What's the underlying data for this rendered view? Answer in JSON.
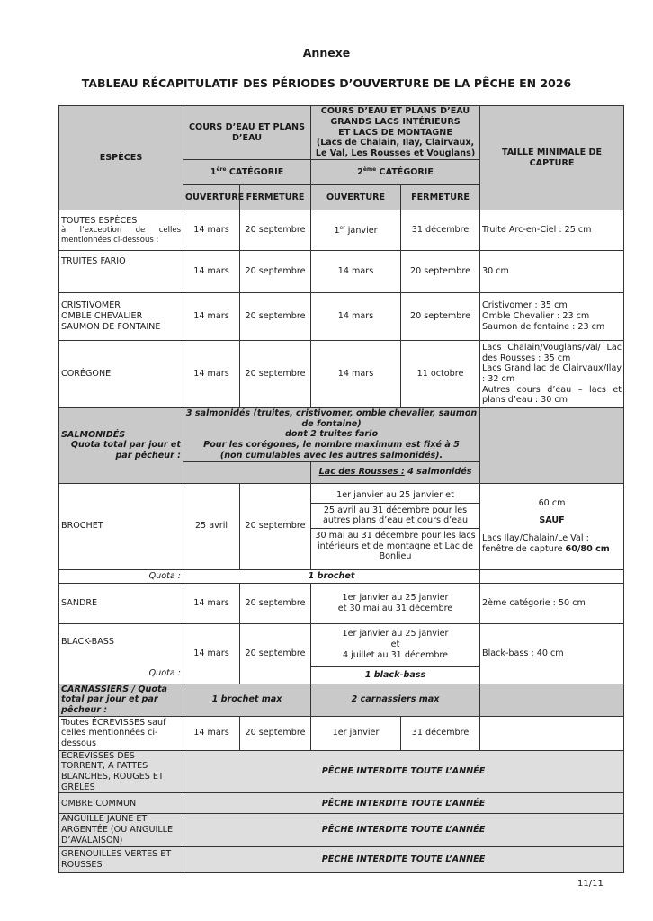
{
  "heading": "Annexe",
  "title": "TABLEAU RÉCAPITULATIF DES PÉRIODES D’OUVERTURE DE LA PÊCHE EN 2026",
  "header": {
    "species": "ESPÈCES",
    "group1": "COURS D’EAU ET PLANS D’EAU",
    "group2_line1": "COURS D’EAU ET PLANS D’EAU",
    "group2_line2": "GRANDS LACS INTÉRIEURS",
    "group2_line3": "ET LACS DE MONTAGNE",
    "group2_line4": "(Lacs de Chalain, Ilay, Clairvaux, Le Val, Les Rousses et Vouglans)",
    "min_size": "TAILLE MINIMALE DE CAPTURE",
    "cat1_num": "1",
    "cat1_sup": "ère",
    "cat1_label": " CATÉGORIE",
    "cat2_num": "2",
    "cat2_sup": "ème",
    "cat2_label": " CATÉGORIE",
    "opening": "OUVERTURE",
    "closing": "FERMETURE"
  },
  "rows": {
    "toutes": {
      "species": "TOUTES ESPÈCES",
      "note": "à l’exception de celles mentionnées ci-dessous :",
      "o1": "14 mars",
      "f1": "20 septembre",
      "o2_num": "1",
      "o2_sup": "er",
      "o2_text": " janvier",
      "f2": "31 décembre",
      "size": "Truite Arc-en-Ciel : 25 cm"
    },
    "fario": {
      "species": "TRUITES FARIO",
      "o1": "14 mars",
      "f1": "20 septembre",
      "o2": "14 mars",
      "f2": "20 septembre",
      "size": "30 cm"
    },
    "cristivomer": {
      "species": [
        "CRISTIVOMER",
        "OMBLE CHEVALIER",
        "SAUMON DE FONTAINE"
      ],
      "o1": "14 mars",
      "f1": "20 septembre",
      "o2": "14 mars",
      "f2": "20 septembre",
      "size": [
        "Cristivomer : 35 cm",
        "Omble Chevalier : 23 cm",
        "Saumon de fontaine : 23 cm"
      ]
    },
    "coregone": {
      "species": "CORÉGONE",
      "o1": "14 mars",
      "f1": "20 septembre",
      "o2": "14 mars",
      "f2": "11 octobre",
      "size": [
        "Lacs Chalain/Vouglans/Val/ Lac des Rousses : 35 cm",
        "Lacs Grand lac de Clairvaux/Ilay : 32 cm",
        "Autres cours d’eau – lacs et plans d’eau : 30 cm"
      ]
    },
    "salmonides": {
      "species": "SALMONIDÉS",
      "quota_label": "Quota total par jour et par pêcheur :",
      "text": [
        "3 salmonidés (truites, cristivomer, omble chevalier, saumon de fontaine)",
        "dont 2 truites fario",
        "Pour les corégones, le nombre maximum est fixé à 5",
        "(non cumulables avec les autres salmonidés)."
      ],
      "rousses_label": "Lac des Rousses :",
      "rousses_value": " 4 salmonidés"
    },
    "brochet": {
      "species": "BROCHET",
      "o1": "25 avril",
      "f1": "20 septembre",
      "periods": [
        "1er janvier au 25 janvier et",
        "25 avril au 31 décembre pour les autres plans d’eau et cours d’eau",
        "30 mai au 31 décembre pour les lacs intérieurs et de montagne et Lac de Bonlieu"
      ],
      "size_main": "60 cm",
      "size_except": "SAUF",
      "size_lakes": "Lacs Ilay/Chalain/Le Val : fenêtre de capture ",
      "size_window": "60/80 cm",
      "quota_label": "Quota :",
      "quota": "1 brochet"
    },
    "sandre": {
      "species": "SANDRE",
      "o1": "14 mars",
      "f1": "20 septembre",
      "periods": [
        "1er janvier au 25 janvier",
        "et 30 mai au 31 décembre"
      ],
      "size": "2ème catégorie : 50 cm"
    },
    "blackbass": {
      "species": "BLACK-BASS",
      "o1": "14 mars",
      "f1": "20 septembre",
      "periods": [
        "1er janvier au 25 janvier",
        "et",
        "4 juillet au 31 décembre"
      ],
      "size": "Black-bass : 40 cm",
      "quota_label": "Quota :",
      "quota": "1 black-bass"
    },
    "carnassiers": {
      "label": "CARNASSIERS / Quota total par jour et par pêcheur :",
      "cat1": "1 brochet max",
      "cat2": "2 carnassiers max"
    },
    "ecrevisses": {
      "species": "Toutes ÉCREVISSES sauf celles mentionnées ci-dessous",
      "o1": "14 mars",
      "f1": "20 septembre",
      "o2": "1er janvier",
      "f2": "31 décembre"
    },
    "forbidden": [
      {
        "species": "ÉCREVISSES DES TORRENT, A PATTES BLANCHES, ROUGES ET GRÊLES",
        "text": "PÊCHE INTERDITE TOUTE L’ANNÉE"
      },
      {
        "species": "OMBRE COMMUN",
        "text": "PÊCHE INTERDITE TOUTE L’ANNÉE"
      },
      {
        "species": "ANGUILLE JAUNE ET ARGENTÉE (OU ANGUILLE D’AVALAISON)",
        "text": "PÊCHE INTERDITE TOUTE L’ANNÉE"
      },
      {
        "species": "GRENOUILLES VERTES ET ROUSSES",
        "text": "PÊCHE INTERDITE TOUTE L’ANNÉE"
      }
    ]
  },
  "page_number": "11/11"
}
